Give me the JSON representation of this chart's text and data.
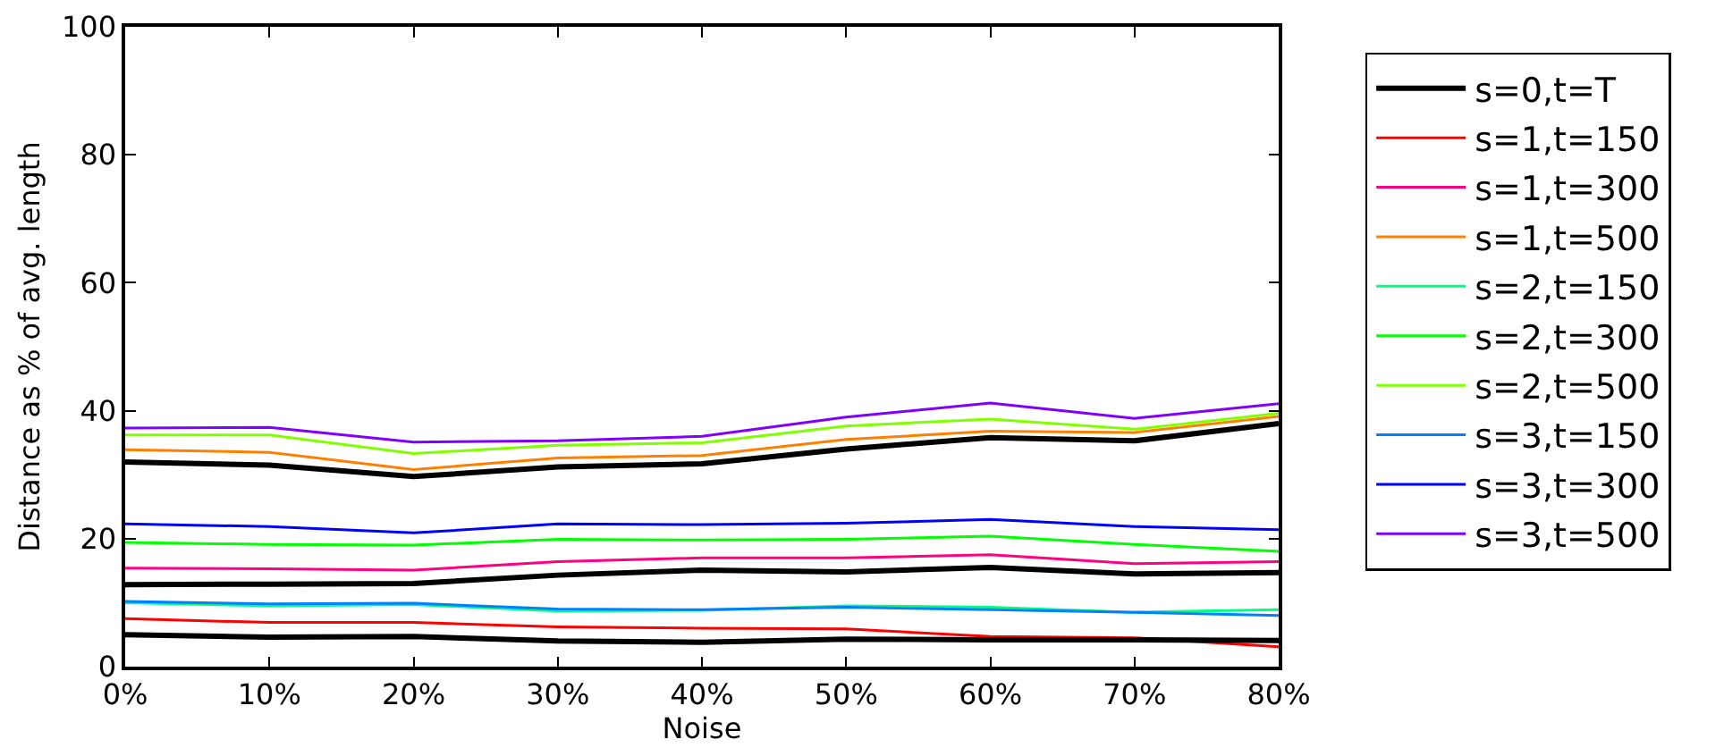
{
  "chart_data": {
    "type": "line",
    "xlabel": "Noise",
    "ylabel": "Distance as % of avg. length",
    "x": [
      0,
      10,
      20,
      30,
      40,
      50,
      60,
      70,
      80
    ],
    "xlim": [
      0,
      80
    ],
    "xticks": [
      {
        "value": 0,
        "label": "0%"
      },
      {
        "value": 10,
        "label": "10%"
      },
      {
        "value": 20,
        "label": "20%"
      },
      {
        "value": 30,
        "label": "30%"
      },
      {
        "value": 40,
        "label": "40%"
      },
      {
        "value": 50,
        "label": "50%"
      },
      {
        "value": 60,
        "label": "60%"
      },
      {
        "value": 70,
        "label": "70%"
      },
      {
        "value": 80,
        "label": "80%"
      }
    ],
    "ylim": [
      0,
      100
    ],
    "yticks": [
      0,
      20,
      40,
      60,
      80,
      100
    ],
    "grid": false,
    "legend": "right",
    "marker": "none",
    "line_style": "solid",
    "series": [
      {
        "name": "s=0,t=T",
        "color": "#000000",
        "values": [
          32,
          31.5,
          29.7,
          31.2,
          31.7,
          34,
          35.8,
          35.3,
          38
        ]
      },
      {
        "name": "s=1,t=150",
        "color": "#ff0000",
        "values": [
          7.5,
          6.9,
          6.9,
          6.2,
          6.0,
          5.9,
          4.7,
          4.5,
          3.1
        ]
      },
      {
        "name": "s=1,t=300",
        "color": "#ff0080",
        "values": [
          15.4,
          15.3,
          15.1,
          16.4,
          17.0,
          17.0,
          17.5,
          16.1,
          16.4
        ]
      },
      {
        "name": "s=1,t=500",
        "color": "#ff8000",
        "values": [
          33.9,
          33.5,
          30.8,
          32.6,
          33.0,
          35.5,
          36.8,
          36.6,
          39.1
        ]
      },
      {
        "name": "s=2,t=150",
        "color": "#00ff80",
        "values": [
          10.0,
          9.5,
          9.7,
          8.7,
          8.8,
          9.5,
          9.3,
          8.5,
          8.9
        ]
      },
      {
        "name": "s=2,t=300",
        "color": "#00ff00",
        "values": [
          19.4,
          19.1,
          19.0,
          19.9,
          19.8,
          19.9,
          20.4,
          19.1,
          18.0
        ]
      },
      {
        "name": "s=2,t=500",
        "color": "#80ff00",
        "values": [
          36.2,
          36.2,
          33.3,
          34.6,
          35.0,
          37.6,
          38.7,
          37.1,
          39.6
        ]
      },
      {
        "name": "s=3,t=150",
        "color": "#0080ff",
        "values": [
          10.2,
          9.8,
          9.9,
          9.0,
          8.9,
          9.3,
          8.9,
          8.5,
          8.0
        ]
      },
      {
        "name": "s=3,t=300",
        "color": "#0000ff",
        "values": [
          22.3,
          21.9,
          20.9,
          22.3,
          22.2,
          22.4,
          23.0,
          21.9,
          21.4
        ]
      },
      {
        "name": "s=3,t=500",
        "color": "#8000ff",
        "values": [
          37.3,
          37.4,
          35.1,
          35.3,
          36.0,
          39.0,
          41.2,
          38.8,
          41.1
        ]
      },
      {
        "color": "#000000",
        "values": [
          12.8,
          12.9,
          13.0,
          14.3,
          15.1,
          14.8,
          15.5,
          14.5,
          14.7
        ]
      },
      {
        "color": "#000000",
        "values": [
          5.0,
          4.6,
          4.7,
          4.0,
          3.8,
          4.3,
          4.2,
          4.2,
          4.1
        ]
      }
    ]
  }
}
